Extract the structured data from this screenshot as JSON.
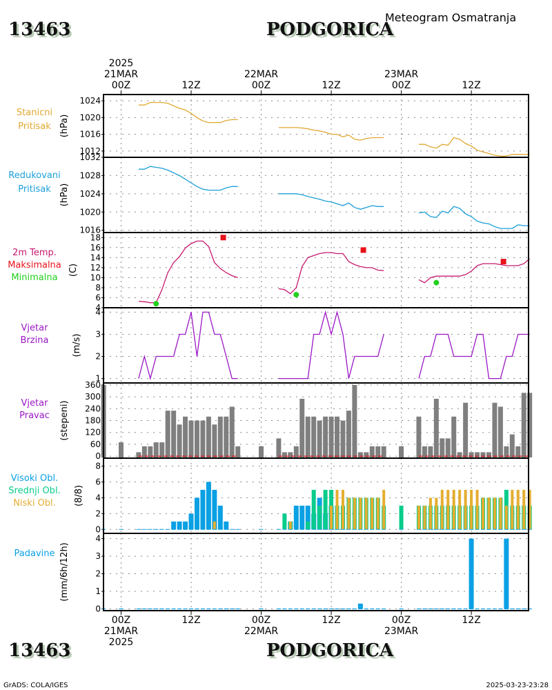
{
  "header": {
    "station_id": "13463",
    "station_name": "PODGORICA",
    "subtitle": "Meteogram Osmatranja"
  },
  "footer": {
    "credit": "GrADS: COLA/IGES",
    "timestamp": "2025-03-23-23:28"
  },
  "time_axis": {
    "top_labels": [
      {
        "hour": 0,
        "lines": [
          "2025",
          "21MAR",
          "00Z"
        ]
      },
      {
        "hour": 12,
        "lines": [
          "12Z"
        ]
      },
      {
        "hour": 24,
        "lines": [
          "22MAR",
          "00Z"
        ]
      },
      {
        "hour": 36,
        "lines": [
          "12Z"
        ]
      },
      {
        "hour": 48,
        "lines": [
          "23MAR",
          "00Z"
        ]
      },
      {
        "hour": 60,
        "lines": [
          "12Z"
        ]
      }
    ],
    "bottom_labels": [
      {
        "hour": 0,
        "lines": [
          "00Z",
          "21MAR",
          "2025"
        ]
      },
      {
        "hour": 12,
        "lines": [
          "12Z"
        ]
      },
      {
        "hour": 24,
        "lines": [
          "00Z",
          "22MAR"
        ]
      },
      {
        "hour": 36,
        "lines": [
          "12Z"
        ]
      },
      {
        "hour": 48,
        "lines": [
          "00Z",
          "23MAR"
        ]
      },
      {
        "hour": 60,
        "lines": [
          "12Z"
        ]
      }
    ]
  },
  "colors": {
    "station_pressure": "#e0a830",
    "reduced_pressure": "#1a9fd8",
    "temperature": "#c8186e",
    "tmax": "#e8121a",
    "tmin": "#22d01e",
    "wind_speed": "#9a16c4",
    "wind_dir": "#7f7f7f",
    "wind_dir_calm": "#e8121a",
    "cloud_high": "#0aa0e4",
    "cloud_mid": "#08cc8c",
    "cloud_low": "#e4ae30",
    "precip": "#0aa0e4"
  },
  "chart_data": [
    {
      "type": "line",
      "name": "station-pressure",
      "label": [
        "Stanicni",
        "Pritisak"
      ],
      "ylabel": "(hPa)",
      "yticks": [
        1012,
        1016,
        1020,
        1024
      ],
      "ylim": [
        1010.5,
        1025.5
      ],
      "x_unit": "hours since 2025-03-21 00Z",
      "segments": [
        {
          "x": [
            3,
            4,
            5,
            6,
            7,
            8,
            9,
            10,
            11,
            12,
            13,
            14,
            15,
            16,
            17,
            18,
            19,
            20
          ],
          "y": [
            1023.0,
            1023.0,
            1023.6,
            1023.6,
            1023.6,
            1023.4,
            1022.8,
            1022.2,
            1021.8,
            1021.0,
            1020.0,
            1019.2,
            1018.8,
            1018.8,
            1018.8,
            1019.3,
            1019.5,
            1019.5
          ]
        },
        {
          "x": [
            27,
            28,
            29,
            30,
            31,
            32,
            33,
            34,
            35,
            36,
            37,
            38,
            39,
            40,
            41,
            42,
            43,
            44,
            45
          ],
          "y": [
            1017.6,
            1017.6,
            1017.6,
            1017.6,
            1017.5,
            1017.3,
            1017.0,
            1016.8,
            1016.5,
            1016.0,
            1016.0,
            1015.4,
            1015.8,
            1014.8,
            1014.6,
            1015.0,
            1015.2,
            1015.2,
            1015.2
          ]
        },
        {
          "x": [
            51,
            52,
            53,
            54,
            55,
            56,
            57,
            58,
            59,
            60,
            61,
            62,
            63,
            64,
            65,
            66,
            67,
            68,
            69,
            70
          ],
          "y": [
            1013.6,
            1013.6,
            1013.0,
            1012.7,
            1013.6,
            1013.4,
            1015.2,
            1014.8,
            1013.8,
            1013.2,
            1012.2,
            1011.8,
            1011.4,
            1011.0,
            1010.8,
            1010.8,
            1011.2,
            1011.2,
            1011.2,
            1011.2
          ]
        }
      ]
    },
    {
      "type": "line",
      "name": "reduced-pressure",
      "label": [
        "Redukovani",
        "Pritisak"
      ],
      "ylabel": "(hPa)",
      "yticks": [
        1016,
        1020,
        1024,
        1028,
        1032
      ],
      "ylim": [
        1015.5,
        1032
      ],
      "x_unit": "hours since 2025-03-21 00Z",
      "segments": [
        {
          "x": [
            3,
            4,
            5,
            6,
            7,
            8,
            9,
            10,
            11,
            12,
            13,
            14,
            15,
            16,
            17,
            18,
            19,
            20
          ],
          "y": [
            1029.4,
            1029.4,
            1030.0,
            1029.8,
            1029.6,
            1029.2,
            1028.6,
            1028.0,
            1027.2,
            1026.4,
            1025.6,
            1025.0,
            1024.8,
            1024.8,
            1024.8,
            1025.3,
            1025.6,
            1025.6
          ]
        },
        {
          "x": [
            27,
            28,
            29,
            30,
            31,
            32,
            33,
            34,
            35,
            36,
            37,
            38,
            39,
            40,
            41,
            42,
            43,
            44,
            45
          ],
          "y": [
            1024.0,
            1024.0,
            1024.0,
            1024.0,
            1023.8,
            1023.4,
            1023.1,
            1022.8,
            1022.4,
            1022.2,
            1021.8,
            1021.4,
            1022.0,
            1021.0,
            1020.6,
            1021.0,
            1021.4,
            1021.2,
            1021.2
          ]
        },
        {
          "x": [
            51,
            52,
            53,
            54,
            55,
            56,
            57,
            58,
            59,
            60,
            61,
            62,
            63,
            64,
            65,
            66,
            67,
            68,
            69,
            70
          ],
          "y": [
            1019.8,
            1020.0,
            1019.0,
            1018.8,
            1020.2,
            1019.8,
            1021.2,
            1020.8,
            1019.6,
            1019.0,
            1018.0,
            1017.6,
            1017.4,
            1016.8,
            1016.4,
            1016.4,
            1016.4,
            1017.2,
            1017.0,
            1017.0
          ]
        }
      ]
    },
    {
      "type": "line",
      "name": "temperature",
      "label": [
        "2m Temp.",
        "Maksimalna",
        "Minimalna"
      ],
      "ylabel": "(C)",
      "yticks": [
        4,
        6,
        8,
        10,
        12,
        14,
        16,
        18
      ],
      "ylim": [
        4,
        19
      ],
      "x_unit": "hours since 2025-03-21 00Z",
      "segments": [
        {
          "x": [
            3,
            4,
            5,
            6,
            7,
            8,
            9,
            10,
            11,
            12,
            13,
            14,
            15,
            16,
            17,
            18,
            19,
            20
          ],
          "y": [
            5.3,
            5.2,
            5.0,
            5.0,
            7.6,
            11.0,
            13.0,
            14.2,
            15.9,
            16.8,
            17.3,
            17.3,
            16.2,
            13.0,
            11.8,
            11.0,
            10.4,
            10.0
          ]
        },
        {
          "x": [
            27,
            28,
            29,
            30,
            31,
            32,
            33,
            34,
            35,
            36,
            37,
            38,
            39,
            40,
            41,
            42,
            43,
            44,
            45
          ],
          "y": [
            7.8,
            7.6,
            6.8,
            8.0,
            12.2,
            14.0,
            14.4,
            14.8,
            15.0,
            15.0,
            14.8,
            14.8,
            13.2,
            12.6,
            12.2,
            12.0,
            12.0,
            11.5,
            11.4
          ]
        },
        {
          "x": [
            51,
            52,
            53,
            54,
            55,
            56,
            57,
            58,
            59,
            60,
            61,
            62,
            63,
            64,
            65,
            66,
            67,
            68,
            69,
            70
          ],
          "y": [
            9.6,
            9.0,
            10.0,
            10.3,
            10.3,
            10.3,
            10.3,
            10.3,
            10.6,
            11.3,
            12.4,
            12.8,
            12.8,
            12.8,
            12.6,
            12.4,
            12.4,
            12.4,
            12.8,
            13.8
          ]
        }
      ],
      "tmax": [
        {
          "x": 17.5,
          "y": 18.0
        },
        {
          "x": 41.5,
          "y": 15.5
        },
        {
          "x": 65.5,
          "y": 13.2
        }
      ],
      "tmin": [
        {
          "x": 6,
          "y": 4.8
        },
        {
          "x": 30,
          "y": 6.6
        },
        {
          "x": 54,
          "y": 9.0
        }
      ]
    },
    {
      "type": "line",
      "name": "wind-speed",
      "label": [
        "Vjetar",
        "Brzina"
      ],
      "ylabel": "(m/s)",
      "yticks": [
        1,
        2,
        3,
        4
      ],
      "ylim": [
        0.8,
        4.2
      ],
      "x_unit": "hours since 2025-03-21 00Z",
      "segments": [
        {
          "x": [
            3,
            4,
            5,
            6,
            7,
            8,
            9,
            10,
            11,
            12,
            13,
            14,
            15,
            16,
            17,
            18,
            19,
            20
          ],
          "y": [
            1,
            2,
            1,
            2,
            2,
            2,
            2,
            3,
            3,
            4,
            2,
            4,
            4,
            3,
            3,
            2,
            1,
            1
          ]
        },
        {
          "x": [
            27,
            28,
            29,
            30,
            31,
            32,
            33,
            34,
            35,
            36,
            37,
            38,
            39,
            40,
            41,
            42,
            43,
            44,
            45
          ],
          "y": [
            1,
            1,
            1,
            1,
            1,
            1,
            3,
            3,
            4,
            3,
            4,
            3,
            1,
            2,
            2,
            2,
            2,
            2,
            3
          ]
        },
        {
          "x": [
            51,
            52,
            53,
            54,
            55,
            56,
            57,
            58,
            59,
            60,
            61,
            62,
            63,
            64,
            65,
            66,
            67,
            68,
            69,
            70
          ],
          "y": [
            1,
            2,
            2,
            3,
            3,
            3,
            2,
            2,
            2,
            2,
            3,
            3,
            1,
            1,
            1,
            2,
            2,
            3,
            3,
            3
          ]
        }
      ]
    },
    {
      "type": "bar",
      "name": "wind-direction",
      "label": [
        "Vjetar",
        "Pravac"
      ],
      "ylabel": "(stepeni)",
      "yticks": [
        0,
        60,
        120,
        180,
        240,
        300,
        360
      ],
      "ylim": [
        -10,
        370
      ],
      "x_unit": "hours since 2025-03-21 00Z",
      "x": [
        -3,
        0,
        3,
        4,
        5,
        6,
        7,
        8,
        9,
        10,
        11,
        12,
        13,
        14,
        15,
        16,
        17,
        18,
        19,
        20,
        24,
        27,
        28,
        29,
        30,
        31,
        32,
        33,
        34,
        35,
        36,
        37,
        38,
        39,
        40,
        41,
        42,
        43,
        44,
        45,
        48,
        51,
        52,
        53,
        54,
        55,
        56,
        57,
        58,
        59,
        60,
        61,
        62,
        63,
        64,
        65,
        66,
        67,
        68,
        69,
        70
      ],
      "values": [
        360,
        70,
        20,
        50,
        50,
        70,
        70,
        230,
        230,
        160,
        200,
        180,
        180,
        180,
        200,
        160,
        200,
        200,
        250,
        50,
        50,
        90,
        20,
        20,
        50,
        290,
        200,
        200,
        180,
        200,
        200,
        200,
        180,
        230,
        360,
        20,
        20,
        50,
        50,
        50,
        50,
        200,
        50,
        50,
        290,
        90,
        90,
        200,
        20,
        270,
        20,
        20,
        20,
        20,
        270,
        250,
        50,
        110,
        50,
        320,
        320
      ],
      "calm_line": [
        [
          3,
          20
        ],
        [
          27,
          45
        ],
        [
          51,
          70
        ]
      ]
    },
    {
      "type": "bar",
      "name": "clouds",
      "label": [
        "Visoki Obl.",
        "Srednji Obl.",
        "Niski Obl."
      ],
      "ylabel": "(8/8)",
      "yticks": [
        0,
        2,
        4,
        6,
        8
      ],
      "ylim": [
        -0.5,
        9
      ],
      "x_unit": "hours since 2025-03-21 00Z",
      "x": [
        -3,
        0,
        3,
        4,
        5,
        6,
        7,
        8,
        9,
        10,
        11,
        12,
        13,
        14,
        15,
        16,
        17,
        18,
        19,
        20,
        24,
        27,
        28,
        29,
        30,
        31,
        32,
        33,
        34,
        35,
        36,
        37,
        38,
        39,
        40,
        41,
        42,
        43,
        44,
        45,
        48,
        51,
        52,
        53,
        54,
        55,
        56,
        57,
        58,
        59,
        60,
        61,
        62,
        63,
        64,
        65,
        66,
        67,
        68,
        69,
        70
      ],
      "high": [
        0,
        0,
        0,
        0,
        0,
        0,
        0,
        0,
        1,
        1,
        1,
        2,
        4,
        5,
        6,
        5,
        3,
        1,
        0,
        0,
        0,
        0,
        0,
        1,
        3,
        3,
        3,
        2,
        4,
        2,
        3,
        0,
        0,
        0,
        0,
        0,
        0,
        0,
        0,
        0,
        0,
        0,
        0,
        0,
        0,
        0,
        0,
        0,
        0,
        0,
        0,
        0,
        0,
        0,
        0,
        0,
        0,
        0,
        0,
        0,
        0
      ],
      "mid": [
        0,
        0,
        0,
        0,
        0,
        0,
        0,
        0,
        0,
        0,
        0,
        0,
        0,
        0,
        0,
        0,
        0,
        0,
        0,
        0,
        0,
        0,
        2,
        1,
        0,
        0,
        1,
        5,
        3,
        5,
        5,
        3,
        3,
        4,
        4,
        4,
        4,
        4,
        4,
        3,
        3,
        3,
        3,
        3,
        3,
        3,
        3,
        3,
        3,
        3,
        3,
        3,
        4,
        4,
        4,
        4,
        5,
        3,
        3,
        3,
        3
      ],
      "low": [
        0,
        0,
        0,
        0,
        0,
        0,
        0,
        0,
        0,
        0,
        0,
        0,
        0,
        0,
        0,
        1,
        0,
        0,
        0,
        0,
        0,
        0,
        0,
        1,
        0,
        0,
        0,
        0,
        0,
        0,
        3,
        5,
        5,
        4,
        4,
        4,
        4,
        4,
        4,
        5,
        0,
        3,
        3,
        4,
        4,
        5,
        5,
        5,
        5,
        5,
        5,
        5,
        4,
        4,
        4,
        4,
        3,
        5,
        5,
        5,
        5
      ]
    },
    {
      "type": "bar",
      "name": "precipitation",
      "label": [
        "Padavine"
      ],
      "ylabel": "(mm/6h/12h)",
      "yticks": [
        0,
        1,
        2,
        3,
        4
      ],
      "ylim": [
        -0.1,
        4.3
      ],
      "x_unit": "hours since 2025-03-21 00Z",
      "x": [
        -3,
        0,
        3,
        4,
        5,
        6,
        7,
        8,
        9,
        10,
        11,
        12,
        13,
        14,
        15,
        16,
        17,
        18,
        19,
        20,
        24,
        27,
        28,
        29,
        30,
        31,
        32,
        33,
        34,
        35,
        36,
        37,
        38,
        39,
        40,
        41,
        42,
        43,
        44,
        45,
        48,
        51,
        52,
        53,
        54,
        55,
        56,
        57,
        58,
        59,
        60,
        61,
        62,
        63,
        64,
        65,
        66,
        67,
        68,
        69,
        70
      ],
      "values": [
        0,
        0,
        0,
        0,
        0,
        0,
        0,
        0,
        0,
        0,
        0,
        0,
        0,
        0,
        0,
        0,
        0,
        0,
        0,
        0,
        0,
        0,
        0,
        0,
        0,
        0,
        0,
        0,
        0,
        0,
        0,
        0,
        0,
        0,
        0,
        0.3,
        0,
        0,
        0,
        0,
        0,
        0,
        0,
        0,
        0,
        0,
        0,
        0,
        0,
        0,
        4.0,
        0,
        0,
        0,
        0,
        0,
        4.0,
        0,
        0,
        0,
        0
      ]
    }
  ]
}
